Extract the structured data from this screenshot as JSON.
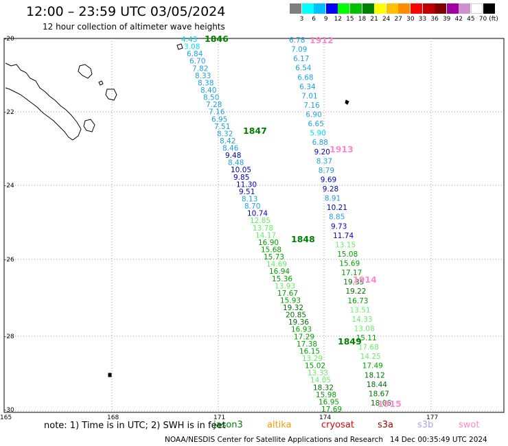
{
  "title": "12:00 – 23:59 UTC 03/05/2024",
  "subtitle": "12 hour collection of altimeter wave heights",
  "legend": {
    "unit": "(ft)",
    "levels": [
      "3",
      "6",
      "9",
      "12",
      "15",
      "18",
      "21",
      "24",
      "27",
      "30",
      "33",
      "36",
      "39",
      "42",
      "45",
      "70"
    ],
    "colors": [
      "#7f7f7f",
      "#00ffff",
      "#00bfff",
      "#0000ff",
      "#00ff00",
      "#00c000",
      "#008000",
      "#ffff00",
      "#ffc000",
      "#ff8c00",
      "#ff0000",
      "#c00000",
      "#800000",
      "#a000a0",
      "#d090d0",
      "#ffffff",
      "#000000"
    ]
  },
  "axes": {
    "lat_labels": [
      "-20",
      "-22",
      "-24",
      "-26",
      "-28",
      "-30"
    ],
    "lon_labels": [
      "165",
      "168",
      "171",
      "174",
      "177"
    ]
  },
  "passes": [
    {
      "label": "1846",
      "color": "#008000"
    },
    {
      "label": "1847",
      "color": "#008000"
    },
    {
      "label": "1848",
      "color": "#008000"
    },
    {
      "label": "1849",
      "color": "#008000"
    },
    {
      "label": "1912",
      "color": "#ff88cc"
    },
    {
      "label": "1913",
      "color": "#ff88cc"
    },
    {
      "label": "1914",
      "color": "#ff88cc"
    },
    {
      "label": "1915",
      "color": "#ff88cc"
    }
  ],
  "track_west": [
    {
      "v": "4.43",
      "c": "#00d8ff"
    },
    {
      "v": "3.08",
      "c": "#00d8ff"
    },
    {
      "v": "6.84",
      "c": "#1fa0e0"
    },
    {
      "v": "6.70",
      "c": "#1fa0e0"
    },
    {
      "v": "7.82",
      "c": "#1fa0e0"
    },
    {
      "v": "8.33",
      "c": "#1fa0e0"
    },
    {
      "v": "8.38",
      "c": "#1fa0e0"
    },
    {
      "v": "8.40",
      "c": "#1fa0e0"
    },
    {
      "v": "8.50",
      "c": "#1fa0e0"
    },
    {
      "v": "7.28",
      "c": "#1fa0e0"
    },
    {
      "v": "7.16",
      "c": "#1fa0e0"
    },
    {
      "v": "6.95",
      "c": "#1fa0e0"
    },
    {
      "v": "7.51",
      "c": "#1fa0e0"
    },
    {
      "v": "8.32",
      "c": "#1fa0e0"
    },
    {
      "v": "8.42",
      "c": "#1fa0e0"
    },
    {
      "v": "8.46",
      "c": "#1fa0e0"
    },
    {
      "v": "9.48",
      "c": "#0000c0"
    },
    {
      "v": "8.48",
      "c": "#1fa0e0"
    },
    {
      "v": "10.05",
      "c": "#0000c0"
    },
    {
      "v": "9.85",
      "c": "#0000c0"
    },
    {
      "v": "11.30",
      "c": "#0000c0"
    },
    {
      "v": "9.51",
      "c": "#0000c0"
    },
    {
      "v": "8.13",
      "c": "#1fa0e0"
    },
    {
      "v": "8.70",
      "c": "#1fa0e0"
    },
    {
      "v": "10.74",
      "c": "#0000c0"
    },
    {
      "v": "12.85",
      "c": "#66ee66"
    },
    {
      "v": "13.78",
      "c": "#66ee66"
    },
    {
      "v": "14.17",
      "c": "#66ee66"
    },
    {
      "v": "16.90",
      "c": "#00a000"
    },
    {
      "v": "15.68",
      "c": "#00a000"
    },
    {
      "v": "15.73",
      "c": "#00a000"
    },
    {
      "v": "14.69",
      "c": "#66ee66"
    },
    {
      "v": "16.94",
      "c": "#00a000"
    },
    {
      "v": "15.36",
      "c": "#00a000"
    },
    {
      "v": "13.93",
      "c": "#66ee66"
    },
    {
      "v": "17.67",
      "c": "#00a000"
    },
    {
      "v": "15.93",
      "c": "#00a000"
    },
    {
      "v": "19.32",
      "c": "#007000"
    },
    {
      "v": "20.85",
      "c": "#007000"
    },
    {
      "v": "19.36",
      "c": "#007000"
    },
    {
      "v": "16.93",
      "c": "#00a000"
    },
    {
      "v": "17.29",
      "c": "#00a000"
    },
    {
      "v": "17.38",
      "c": "#00a000"
    },
    {
      "v": "16.15",
      "c": "#00a000"
    },
    {
      "v": "13.29",
      "c": "#66ee66"
    },
    {
      "v": "15.02",
      "c": "#00a000"
    },
    {
      "v": "13.33",
      "c": "#66ee66"
    },
    {
      "v": "14.05",
      "c": "#66ee66"
    },
    {
      "v": "18.32",
      "c": "#007000"
    },
    {
      "v": "15.98",
      "c": "#00a000"
    },
    {
      "v": "16.95",
      "c": "#00a000"
    },
    {
      "v": "17.69",
      "c": "#00a000"
    }
  ],
  "track_east": [
    {
      "v": "6.78",
      "c": "#1fa0e0"
    },
    {
      "v": "7.09",
      "c": "#1fa0e0"
    },
    {
      "v": "6.17",
      "c": "#1fa0e0"
    },
    {
      "v": "6.54",
      "c": "#1fa0e0"
    },
    {
      "v": "6.68",
      "c": "#1fa0e0"
    },
    {
      "v": "6.34",
      "c": "#1fa0e0"
    },
    {
      "v": "7.01",
      "c": "#1fa0e0"
    },
    {
      "v": "7.16",
      "c": "#1fa0e0"
    },
    {
      "v": "6.90",
      "c": "#1fa0e0"
    },
    {
      "v": "6.65",
      "c": "#1fa0e0"
    },
    {
      "v": "5.90",
      "c": "#00d8ff"
    },
    {
      "v": "6.88",
      "c": "#1fa0e0"
    },
    {
      "v": "9.20",
      "c": "#0000c0"
    },
    {
      "v": "8.37",
      "c": "#1fa0e0"
    },
    {
      "v": "8.79",
      "c": "#1fa0e0"
    },
    {
      "v": "9.69",
      "c": "#0000c0"
    },
    {
      "v": "9.28",
      "c": "#0000c0"
    },
    {
      "v": "8.91",
      "c": "#1fa0e0"
    },
    {
      "v": "10.21",
      "c": "#0000c0"
    },
    {
      "v": "8.85",
      "c": "#1fa0e0"
    },
    {
      "v": "9.73",
      "c": "#0000c0"
    },
    {
      "v": "11.74",
      "c": "#0000c0"
    },
    {
      "v": "13.15",
      "c": "#66ee66"
    },
    {
      "v": "15.08",
      "c": "#00a000"
    },
    {
      "v": "15.69",
      "c": "#00a000"
    },
    {
      "v": "17.17",
      "c": "#00a000"
    },
    {
      "v": "19.35",
      "c": "#007000"
    },
    {
      "v": "19.22",
      "c": "#007000"
    },
    {
      "v": "16.73",
      "c": "#00a000"
    },
    {
      "v": "13.51",
      "c": "#66ee66"
    },
    {
      "v": "14.33",
      "c": "#66ee66"
    },
    {
      "v": "13.08",
      "c": "#66ee66"
    },
    {
      "v": "15.11",
      "c": "#00a000"
    },
    {
      "v": "17.68",
      "c": "#66ee66"
    },
    {
      "v": "14.25",
      "c": "#66ee66"
    },
    {
      "v": "17.49",
      "c": "#00a000"
    },
    {
      "v": "18.12",
      "c": "#007000"
    },
    {
      "v": "18.44",
      "c": "#007000"
    },
    {
      "v": "18.67",
      "c": "#007000"
    },
    {
      "v": "18.06",
      "c": "#007000"
    }
  ],
  "note": "note:  1) Time is in UTC;  2) SWH is in feet",
  "satellites": [
    {
      "name": "jason3",
      "color": "#008000"
    },
    {
      "name": "altika",
      "color": "#ff9900"
    },
    {
      "name": "cryosat",
      "color": "#e00000"
    },
    {
      "name": "s3a",
      "color": "#990000"
    },
    {
      "name": "s3b",
      "color": "#b0a0f0"
    },
    {
      "name": "swot",
      "color": "#ff88cc"
    }
  ],
  "credit": "NOAA/NESDIS Center for Satellite Applications and Research   14 Dec 00:35:49 UTC 2024"
}
